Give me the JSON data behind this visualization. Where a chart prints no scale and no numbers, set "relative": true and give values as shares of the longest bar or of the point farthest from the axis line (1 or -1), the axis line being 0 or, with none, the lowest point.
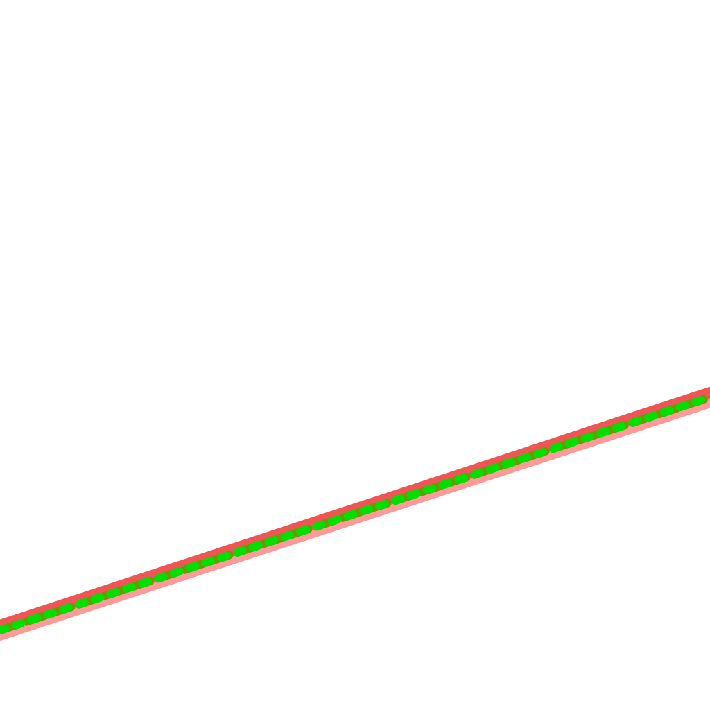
{
  "chart_data": {
    "type": "line",
    "relative": true,
    "categories": [
      null,
      null
    ],
    "legend": false,
    "marker": "none",
    "series": [
      {
        "color": "#ff9a9a",
        "values": [
          0,
          0.96
        ],
        "line_style": "solid"
      },
      {
        "color": "#f05555",
        "values": [
          0.04,
          1
        ],
        "line_style": "solid"
      },
      {
        "color": "#6a9a00",
        "values": [
          0.02,
          0.98
        ],
        "line_style": "dashed"
      },
      {
        "color": "#00e000",
        "values": [
          0.02,
          0.98
        ],
        "line_style": "dotted"
      }
    ]
  }
}
